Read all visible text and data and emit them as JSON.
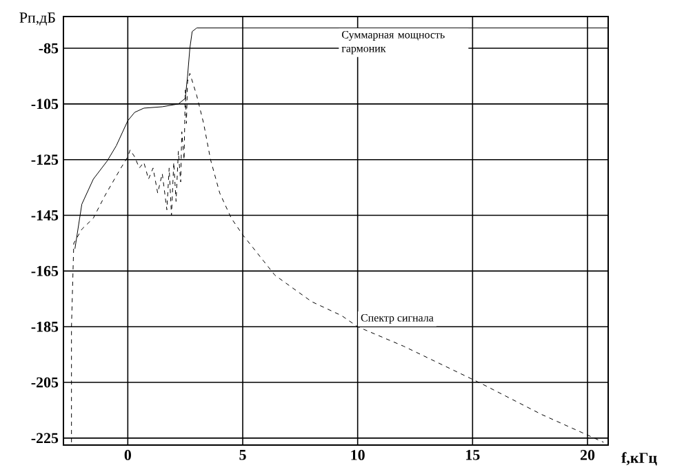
{
  "chart_data": {
    "type": "line",
    "xlabel": "f,кГц",
    "ylabel": "Рп,дБ",
    "xlim": [
      -2.8,
      20.9
    ],
    "ylim": [
      -227.5,
      -73.6
    ],
    "xticks": [
      0,
      5,
      10,
      15,
      20
    ],
    "yticks": [
      -225,
      -205,
      -185,
      -165,
      -145,
      -125,
      -105,
      -85
    ],
    "grid": true,
    "series": [
      {
        "color": "#000000",
        "line_style": "solid",
        "x": [
          -2.3,
          -2.0,
          -1.5,
          -0.9,
          -0.5,
          0,
          0.3,
          0.7,
          1.5,
          2.2,
          2.5,
          2.6,
          2.7,
          2.8,
          3.0,
          20.9
        ],
        "values": [
          -157,
          -141,
          -132,
          -125.5,
          -120,
          -111,
          -108,
          -106.5,
          -106,
          -105,
          -103,
          -95,
          -85,
          -79,
          -77.7,
          -77.7
        ]
      },
      {
        "color": "#000000",
        "line_style": "dashed",
        "x": [
          -2.45,
          -2.45,
          -2.35,
          -2.0,
          -1.5,
          -1,
          -0.3,
          0,
          0.1,
          0.3,
          0.5,
          0.7,
          0.9,
          1.1,
          1.3,
          1.5,
          1.7,
          1.8,
          1.9,
          2.0,
          2.1,
          2.2,
          2.3,
          2.35,
          2.45,
          2.5,
          2.55,
          2.6,
          2.7,
          3.0,
          3.3,
          3.6,
          4.0,
          4.5,
          5,
          6.4,
          8,
          9.3,
          10,
          12,
          15.4,
          18,
          20.7
        ],
        "values": [
          -226.5,
          -185,
          -155,
          -150,
          -146,
          -138,
          -128,
          -124,
          -121.5,
          -124,
          -128,
          -126,
          -132,
          -128,
          -137,
          -130,
          -143,
          -128,
          -145,
          -126,
          -140,
          -122,
          -133,
          -115,
          -125,
          -100,
          -112,
          -97,
          -94,
          -102,
          -112,
          -125,
          -137,
          -146,
          -152,
          -166.5,
          -176,
          -181,
          -185,
          -192,
          -205.5,
          -216.5,
          -226.5
        ]
      }
    ],
    "annotations": [
      {
        "text": "Суммарная мощность гармоник",
        "x": 12,
        "y": -77.7
      },
      {
        "text": "Спектр сигнала",
        "x": 10,
        "y": -185
      }
    ]
  }
}
